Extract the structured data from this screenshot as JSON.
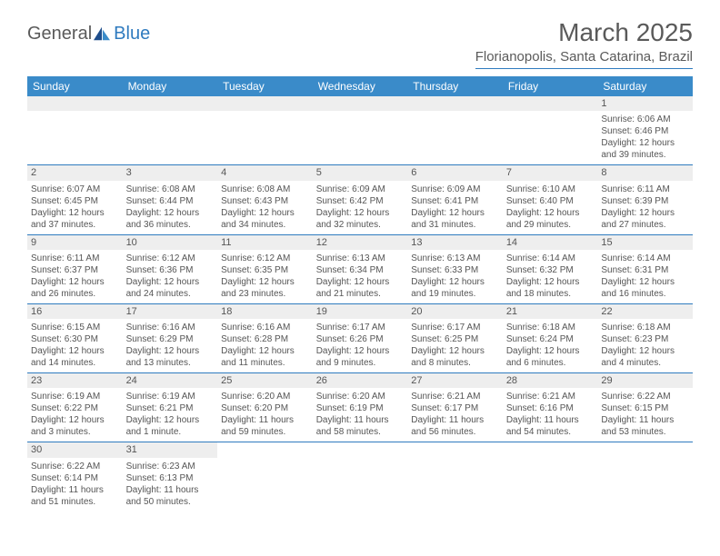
{
  "logo": {
    "general": "General",
    "blue": "Blue"
  },
  "title": "March 2025",
  "location": "Florianopolis, Santa Catarina, Brazil",
  "dayHeaders": [
    "Sunday",
    "Monday",
    "Tuesday",
    "Wednesday",
    "Thursday",
    "Friday",
    "Saturday"
  ],
  "colors": {
    "headerBg": "#3a8bc9",
    "headerText": "#ffffff",
    "dayBg": "#eeeeee",
    "ruleColor": "#2f7bbf",
    "text": "#555555"
  },
  "typography": {
    "titleSize": 28,
    "locationSize": 15,
    "headerSize": 12,
    "cellSize": 10
  },
  "weeks": [
    [
      null,
      null,
      null,
      null,
      null,
      null,
      {
        "n": "1",
        "sr": "Sunrise: 6:06 AM",
        "ss": "Sunset: 6:46 PM",
        "dl": "Daylight: 12 hours and 39 minutes."
      }
    ],
    [
      {
        "n": "2",
        "sr": "Sunrise: 6:07 AM",
        "ss": "Sunset: 6:45 PM",
        "dl": "Daylight: 12 hours and 37 minutes."
      },
      {
        "n": "3",
        "sr": "Sunrise: 6:08 AM",
        "ss": "Sunset: 6:44 PM",
        "dl": "Daylight: 12 hours and 36 minutes."
      },
      {
        "n": "4",
        "sr": "Sunrise: 6:08 AM",
        "ss": "Sunset: 6:43 PM",
        "dl": "Daylight: 12 hours and 34 minutes."
      },
      {
        "n": "5",
        "sr": "Sunrise: 6:09 AM",
        "ss": "Sunset: 6:42 PM",
        "dl": "Daylight: 12 hours and 32 minutes."
      },
      {
        "n": "6",
        "sr": "Sunrise: 6:09 AM",
        "ss": "Sunset: 6:41 PM",
        "dl": "Daylight: 12 hours and 31 minutes."
      },
      {
        "n": "7",
        "sr": "Sunrise: 6:10 AM",
        "ss": "Sunset: 6:40 PM",
        "dl": "Daylight: 12 hours and 29 minutes."
      },
      {
        "n": "8",
        "sr": "Sunrise: 6:11 AM",
        "ss": "Sunset: 6:39 PM",
        "dl": "Daylight: 12 hours and 27 minutes."
      }
    ],
    [
      {
        "n": "9",
        "sr": "Sunrise: 6:11 AM",
        "ss": "Sunset: 6:37 PM",
        "dl": "Daylight: 12 hours and 26 minutes."
      },
      {
        "n": "10",
        "sr": "Sunrise: 6:12 AM",
        "ss": "Sunset: 6:36 PM",
        "dl": "Daylight: 12 hours and 24 minutes."
      },
      {
        "n": "11",
        "sr": "Sunrise: 6:12 AM",
        "ss": "Sunset: 6:35 PM",
        "dl": "Daylight: 12 hours and 23 minutes."
      },
      {
        "n": "12",
        "sr": "Sunrise: 6:13 AM",
        "ss": "Sunset: 6:34 PM",
        "dl": "Daylight: 12 hours and 21 minutes."
      },
      {
        "n": "13",
        "sr": "Sunrise: 6:13 AM",
        "ss": "Sunset: 6:33 PM",
        "dl": "Daylight: 12 hours and 19 minutes."
      },
      {
        "n": "14",
        "sr": "Sunrise: 6:14 AM",
        "ss": "Sunset: 6:32 PM",
        "dl": "Daylight: 12 hours and 18 minutes."
      },
      {
        "n": "15",
        "sr": "Sunrise: 6:14 AM",
        "ss": "Sunset: 6:31 PM",
        "dl": "Daylight: 12 hours and 16 minutes."
      }
    ],
    [
      {
        "n": "16",
        "sr": "Sunrise: 6:15 AM",
        "ss": "Sunset: 6:30 PM",
        "dl": "Daylight: 12 hours and 14 minutes."
      },
      {
        "n": "17",
        "sr": "Sunrise: 6:16 AM",
        "ss": "Sunset: 6:29 PM",
        "dl": "Daylight: 12 hours and 13 minutes."
      },
      {
        "n": "18",
        "sr": "Sunrise: 6:16 AM",
        "ss": "Sunset: 6:28 PM",
        "dl": "Daylight: 12 hours and 11 minutes."
      },
      {
        "n": "19",
        "sr": "Sunrise: 6:17 AM",
        "ss": "Sunset: 6:26 PM",
        "dl": "Daylight: 12 hours and 9 minutes."
      },
      {
        "n": "20",
        "sr": "Sunrise: 6:17 AM",
        "ss": "Sunset: 6:25 PM",
        "dl": "Daylight: 12 hours and 8 minutes."
      },
      {
        "n": "21",
        "sr": "Sunrise: 6:18 AM",
        "ss": "Sunset: 6:24 PM",
        "dl": "Daylight: 12 hours and 6 minutes."
      },
      {
        "n": "22",
        "sr": "Sunrise: 6:18 AM",
        "ss": "Sunset: 6:23 PM",
        "dl": "Daylight: 12 hours and 4 minutes."
      }
    ],
    [
      {
        "n": "23",
        "sr": "Sunrise: 6:19 AM",
        "ss": "Sunset: 6:22 PM",
        "dl": "Daylight: 12 hours and 3 minutes."
      },
      {
        "n": "24",
        "sr": "Sunrise: 6:19 AM",
        "ss": "Sunset: 6:21 PM",
        "dl": "Daylight: 12 hours and 1 minute."
      },
      {
        "n": "25",
        "sr": "Sunrise: 6:20 AM",
        "ss": "Sunset: 6:20 PM",
        "dl": "Daylight: 11 hours and 59 minutes."
      },
      {
        "n": "26",
        "sr": "Sunrise: 6:20 AM",
        "ss": "Sunset: 6:19 PM",
        "dl": "Daylight: 11 hours and 58 minutes."
      },
      {
        "n": "27",
        "sr": "Sunrise: 6:21 AM",
        "ss": "Sunset: 6:17 PM",
        "dl": "Daylight: 11 hours and 56 minutes."
      },
      {
        "n": "28",
        "sr": "Sunrise: 6:21 AM",
        "ss": "Sunset: 6:16 PM",
        "dl": "Daylight: 11 hours and 54 minutes."
      },
      {
        "n": "29",
        "sr": "Sunrise: 6:22 AM",
        "ss": "Sunset: 6:15 PM",
        "dl": "Daylight: 11 hours and 53 minutes."
      }
    ],
    [
      {
        "n": "30",
        "sr": "Sunrise: 6:22 AM",
        "ss": "Sunset: 6:14 PM",
        "dl": "Daylight: 11 hours and 51 minutes."
      },
      {
        "n": "31",
        "sr": "Sunrise: 6:23 AM",
        "ss": "Sunset: 6:13 PM",
        "dl": "Daylight: 11 hours and 50 minutes."
      },
      null,
      null,
      null,
      null,
      null
    ]
  ]
}
